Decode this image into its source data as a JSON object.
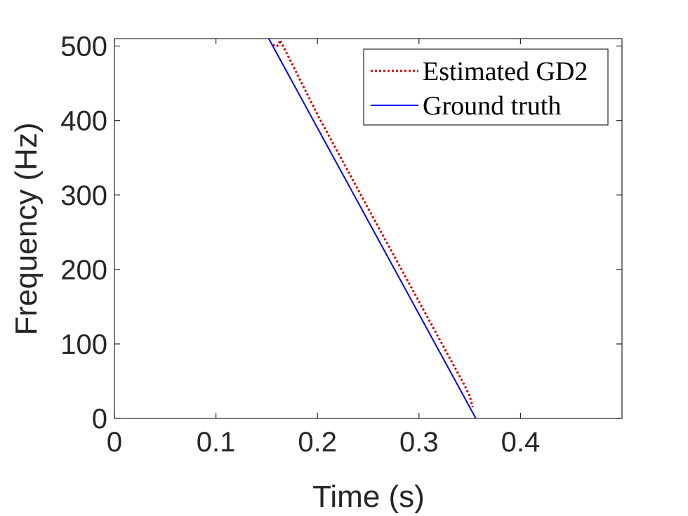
{
  "chart_data": {
    "type": "line",
    "title": "",
    "xlabel": "Time (s)",
    "ylabel": "Frequency (Hz)",
    "xlim": [
      0,
      0.5
    ],
    "ylim": [
      0,
      510
    ],
    "xticks": [
      0,
      0.1,
      0.2,
      0.3,
      0.4
    ],
    "xtick_labels": [
      "0",
      "0.1",
      "0.2",
      "0.3",
      "0.4"
    ],
    "yticks": [
      0,
      100,
      200,
      300,
      400,
      500
    ],
    "ytick_labels": [
      "0",
      "100",
      "200",
      "300",
      "400",
      "500"
    ],
    "grid": false,
    "legend_position": "top-right",
    "series": [
      {
        "name": "Estimated GD2",
        "color": "#d40000",
        "style": "dotted",
        "x": [
          0.156,
          0.158,
          0.16,
          0.162,
          0.163,
          0.165,
          0.2,
          0.25,
          0.3,
          0.345,
          0.35,
          0.353
        ],
        "y": [
          502,
          500,
          500,
          502,
          508,
          503,
          408,
          282,
          157,
          44,
          30,
          15
        ]
      },
      {
        "name": "Ground truth",
        "color": "#0000ee",
        "style": "solid",
        "x": [
          0.152,
          0.356
        ],
        "y": [
          510,
          0
        ]
      }
    ]
  }
}
